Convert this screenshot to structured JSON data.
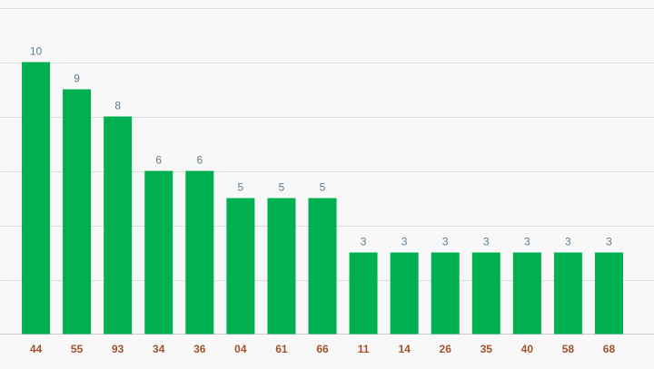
{
  "chart_data": {
    "type": "bar",
    "categories": [
      "44",
      "55",
      "93",
      "34",
      "36",
      "04",
      "61",
      "66",
      "11",
      "14",
      "26",
      "35",
      "40",
      "58",
      "68"
    ],
    "values": [
      10,
      9,
      8,
      6,
      6,
      5,
      5,
      5,
      3,
      3,
      3,
      3,
      3,
      3,
      3
    ],
    "ylim": [
      0,
      12
    ],
    "grid_step": 2,
    "grid": true,
    "bar_color": "#00b050",
    "value_label_color": "#5f7d8f",
    "category_label_color": "#a0522d",
    "gridline_color": "#dcdcdc"
  }
}
